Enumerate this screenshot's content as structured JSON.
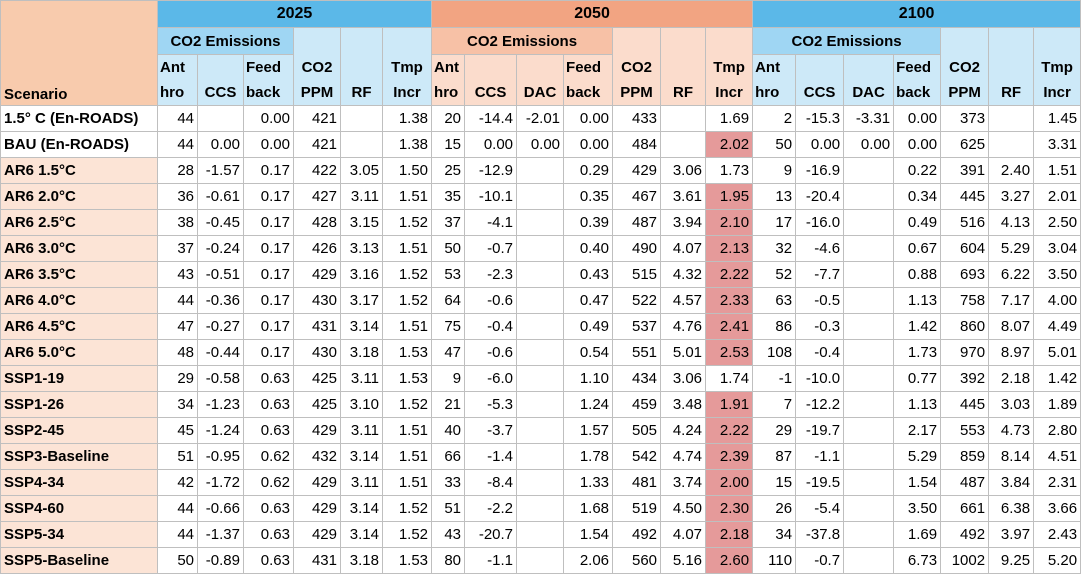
{
  "table": {
    "scenario_header": "Scenario",
    "blocks": [
      {
        "year": "2025",
        "group": "CO2 Emissions",
        "emissions": [
          "Ant\nhro",
          "CCS",
          "Feed\nback"
        ],
        "other": [
          "CO2\nPPM",
          "RF",
          "Tmp\nIncr"
        ]
      },
      {
        "year": "2050",
        "group": "CO2 Emissions",
        "emissions": [
          "Ant\nhro",
          "CCS",
          "DAC",
          "Feed\nback"
        ],
        "other": [
          "CO2\nPPM",
          "RF",
          "Tmp\nIncr"
        ]
      },
      {
        "year": "2100",
        "group": "CO2 Emissions",
        "emissions": [
          "Ant\nhro",
          "CCS",
          "DAC",
          "Feed\nback"
        ],
        "other": [
          "CO2\nPPM",
          "RF",
          "Tmp\nIncr"
        ]
      }
    ],
    "rows": [
      {
        "scenario": "1.5° C (En-ROADS)",
        "cells": [
          "44",
          null,
          "0.00",
          "421",
          null,
          "1.38",
          "20",
          "-14.4",
          "-2.01",
          "0.00",
          "433",
          null,
          "1.69",
          "2",
          "-15.3",
          "-3.31",
          "0.00",
          "373",
          null,
          "1.45"
        ]
      },
      {
        "scenario": "BAU (En-ROADS)",
        "cells": [
          "44",
          "0.00",
          "0.00",
          "421",
          null,
          "1.38",
          "15",
          "0.00",
          "0.00",
          "0.00",
          "484",
          null,
          "2.02",
          "50",
          "0.00",
          "0.00",
          "0.00",
          "625",
          null,
          "3.31"
        ],
        "highlight_color": "#e59a9a"
      },
      {
        "scenario": "AR6 1.5°C",
        "cells": [
          "28",
          "-1.57",
          "0.17",
          "422",
          "3.05",
          "1.50",
          "25",
          "-12.9",
          null,
          "0.29",
          "429",
          "3.06",
          "1.73",
          "9",
          "-16.9",
          null,
          "0.22",
          "391",
          "2.40",
          "1.51"
        ]
      },
      {
        "scenario": "AR6 2.0°C",
        "cells": [
          "36",
          "-0.61",
          "0.17",
          "427",
          "3.11",
          "1.51",
          "35",
          "-10.1",
          null,
          "0.35",
          "467",
          "3.61",
          "1.95",
          "13",
          "-20.4",
          null,
          "0.34",
          "445",
          "3.27",
          "2.01"
        ],
        "highlight_color": "#e59a9a"
      },
      {
        "scenario": "AR6 2.5°C",
        "cells": [
          "38",
          "-0.45",
          "0.17",
          "428",
          "3.15",
          "1.52",
          "37",
          "-4.1",
          null,
          "0.39",
          "487",
          "3.94",
          "2.10",
          "17",
          "-16.0",
          null,
          "0.49",
          "516",
          "4.13",
          "2.50"
        ],
        "highlight_color": "#e59a9a"
      },
      {
        "scenario": "AR6 3.0°C",
        "cells": [
          "37",
          "-0.24",
          "0.17",
          "426",
          "3.13",
          "1.51",
          "50",
          "-0.7",
          null,
          "0.40",
          "490",
          "4.07",
          "2.13",
          "32",
          "-4.6",
          null,
          "0.67",
          "604",
          "5.29",
          "3.04"
        ],
        "highlight_color": "#e59a9a"
      },
      {
        "scenario": "AR6 3.5°C",
        "cells": [
          "43",
          "-0.51",
          "0.17",
          "429",
          "3.16",
          "1.52",
          "53",
          "-2.3",
          null,
          "0.43",
          "515",
          "4.32",
          "2.22",
          "52",
          "-7.7",
          null,
          "0.88",
          "693",
          "6.22",
          "3.50"
        ],
        "highlight_color": "#e59a9a"
      },
      {
        "scenario": "AR6 4.0°C",
        "cells": [
          "44",
          "-0.36",
          "0.17",
          "430",
          "3.17",
          "1.52",
          "64",
          "-0.6",
          null,
          "0.47",
          "522",
          "4.57",
          "2.33",
          "63",
          "-0.5",
          null,
          "1.13",
          "758",
          "7.17",
          "4.00"
        ],
        "highlight_color": "#e59a9a"
      },
      {
        "scenario": "AR6 4.5°C",
        "cells": [
          "47",
          "-0.27",
          "0.17",
          "431",
          "3.14",
          "1.51",
          "75",
          "-0.4",
          null,
          "0.49",
          "537",
          "4.76",
          "2.41",
          "86",
          "-0.3",
          null,
          "1.42",
          "860",
          "8.07",
          "4.49"
        ],
        "highlight_color": "#e59a9a"
      },
      {
        "scenario": "AR6 5.0°C",
        "cells": [
          "48",
          "-0.44",
          "0.17",
          "430",
          "3.18",
          "1.53",
          "47",
          "-0.6",
          null,
          "0.54",
          "551",
          "5.01",
          "2.53",
          "108",
          "-0.4",
          null,
          "1.73",
          "970",
          "8.97",
          "5.01"
        ],
        "highlight_color": "#e59a9a"
      },
      {
        "scenario": "SSP1-19",
        "cells": [
          "29",
          "-0.58",
          "0.63",
          "425",
          "3.11",
          "1.53",
          "9",
          "-6.0",
          null,
          "1.10",
          "434",
          "3.06",
          "1.74",
          "-1",
          "-10.0",
          null,
          "0.77",
          "392",
          "2.18",
          "1.42"
        ]
      },
      {
        "scenario": "SSP1-26",
        "cells": [
          "34",
          "-1.23",
          "0.63",
          "425",
          "3.10",
          "1.52",
          "21",
          "-5.3",
          null,
          "1.24",
          "459",
          "3.48",
          "1.91",
          "7",
          "-12.2",
          null,
          "1.13",
          "445",
          "3.03",
          "1.89"
        ],
        "highlight_color": "#e59a9a"
      },
      {
        "scenario": "SSP2-45",
        "cells": [
          "45",
          "-1.24",
          "0.63",
          "429",
          "3.11",
          "1.51",
          "40",
          "-3.7",
          null,
          "1.57",
          "505",
          "4.24",
          "2.22",
          "29",
          "-19.7",
          null,
          "2.17",
          "553",
          "4.73",
          "2.80"
        ],
        "highlight_color": "#e59a9a"
      },
      {
        "scenario": "SSP3-Baseline",
        "cells": [
          "51",
          "-0.95",
          "0.62",
          "432",
          "3.14",
          "1.51",
          "66",
          "-1.4",
          null,
          "1.78",
          "542",
          "4.74",
          "2.39",
          "87",
          "-1.1",
          null,
          "5.29",
          "859",
          "8.14",
          "4.51"
        ],
        "highlight_color": "#e59a9a"
      },
      {
        "scenario": "SSP4-34",
        "cells": [
          "42",
          "-1.72",
          "0.62",
          "429",
          "3.11",
          "1.51",
          "33",
          "-8.4",
          null,
          "1.33",
          "481",
          "3.74",
          "2.00",
          "15",
          "-19.5",
          null,
          "1.54",
          "487",
          "3.84",
          "2.31"
        ],
        "highlight_color": "#e59a9a"
      },
      {
        "scenario": "SSP4-60",
        "cells": [
          "44",
          "-0.66",
          "0.63",
          "429",
          "3.14",
          "1.52",
          "51",
          "-2.2",
          null,
          "1.68",
          "519",
          "4.50",
          "2.30",
          "26",
          "-5.4",
          null,
          "3.50",
          "661",
          "6.38",
          "3.66"
        ],
        "highlight_color": "#e59a9a"
      },
      {
        "scenario": "SSP5-34",
        "cells": [
          "44",
          "-1.37",
          "0.63",
          "429",
          "3.14",
          "1.52",
          "43",
          "-20.7",
          null,
          "1.54",
          "492",
          "4.07",
          "2.18",
          "34",
          "-37.8",
          null,
          "1.69",
          "492",
          "3.97",
          "2.43"
        ],
        "highlight_color": "#e59a9a"
      },
      {
        "scenario": "SSP5-Baseline",
        "cells": [
          "50",
          "-0.89",
          "0.63",
          "431",
          "3.18",
          "1.53",
          "80",
          "-1.1",
          null,
          "2.06",
          "560",
          "5.16",
          "2.60",
          "110",
          "-0.7",
          null,
          "6.73",
          "1002",
          "9.25",
          "5.20"
        ],
        "highlight_color": "#e59a9a"
      }
    ]
  }
}
